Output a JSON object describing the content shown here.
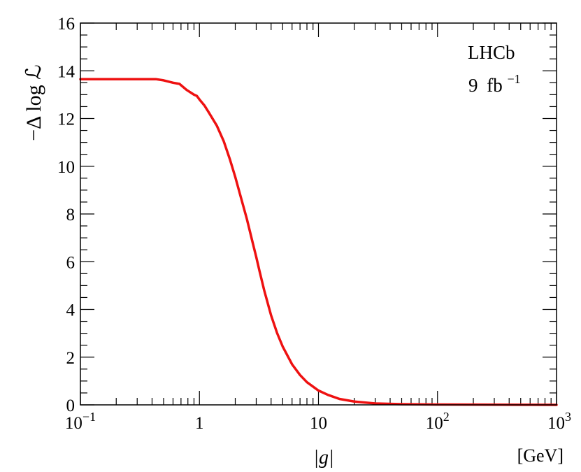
{
  "chart_data": {
    "type": "line",
    "title": "",
    "xscale": "log",
    "xlim": [
      0.1,
      1000
    ],
    "ylim": [
      0,
      16
    ],
    "grid": false,
    "xlabel": "|g|",
    "xunit": "[GeV]",
    "ylabel": "−Δ log ℒ",
    "x_tick_labels": [
      {
        "value": 0.1,
        "base": "10",
        "exp": "−1"
      },
      {
        "value": 1,
        "base": "1",
        "exp": ""
      },
      {
        "value": 10,
        "base": "10",
        "exp": ""
      },
      {
        "value": 100,
        "base": "10",
        "exp": "2"
      },
      {
        "value": 1000,
        "base": "10",
        "exp": "3"
      }
    ],
    "y_tick_labels": [
      "0",
      "2",
      "4",
      "6",
      "8",
      "10",
      "12",
      "14",
      "16"
    ],
    "annotations": {
      "experiment": "LHCb",
      "lumi_value": "9",
      "lumi_unit": "fb",
      "lumi_exp": "−1"
    },
    "series": [
      {
        "color": "#ee1111",
        "x": [
          0.1,
          0.2,
          0.3,
          0.43,
          0.5,
          0.6,
          0.68,
          0.78,
          0.9,
          0.95,
          1.0,
          1.1,
          1.2,
          1.4,
          1.6,
          1.8,
          2.0,
          2.2,
          2.5,
          2.8,
          3.0,
          3.2,
          3.5,
          4.0,
          4.5,
          5.0,
          6.0,
          7.0,
          8.0,
          10.0,
          12.0,
          15.0,
          20.0,
          30.0,
          50.0,
          100.0,
          200.0,
          500.0,
          1000.0
        ],
        "y": [
          13.65,
          13.65,
          13.65,
          13.65,
          13.6,
          13.5,
          13.45,
          13.2,
          13.0,
          12.95,
          12.8,
          12.55,
          12.25,
          11.7,
          11.05,
          10.3,
          9.55,
          8.8,
          7.8,
          6.8,
          6.2,
          5.6,
          4.8,
          3.75,
          3.0,
          2.45,
          1.7,
          1.25,
          0.95,
          0.6,
          0.42,
          0.25,
          0.14,
          0.06,
          0.03,
          0.015,
          0.01,
          0.005,
          0.0
        ]
      }
    ]
  }
}
